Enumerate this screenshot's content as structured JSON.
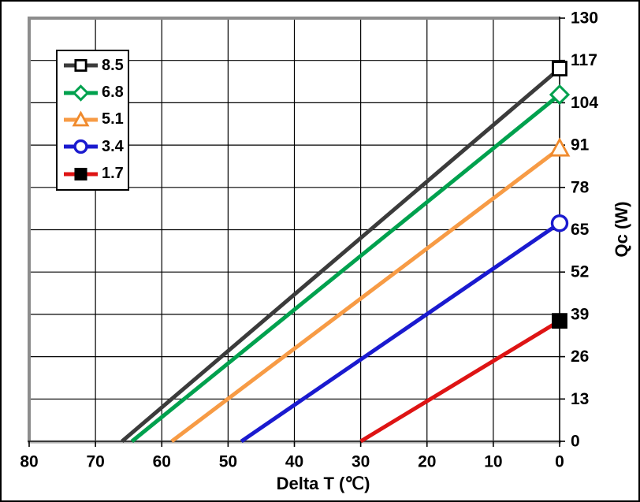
{
  "chart_data": {
    "type": "line",
    "title": "",
    "xlabel": "Delta T (℃)",
    "ylabel": "Qc (W)",
    "grid": true,
    "legend_position": "top-left",
    "x_axis": {
      "min": 0,
      "max": 80,
      "reversed": true,
      "ticks": [
        80,
        70,
        60,
        50,
        40,
        30,
        20,
        10,
        0
      ]
    },
    "y_axis": {
      "min": 0,
      "max": 130,
      "side": "right",
      "ticks": [
        0,
        13,
        26,
        39,
        52,
        65,
        78,
        91,
        104,
        117,
        130
      ]
    },
    "series": [
      {
        "name": "8.5",
        "color": "#3B3B3B",
        "marker": {
          "shape": "square",
          "fill": "#FFFFFF",
          "stroke": "#000000"
        },
        "points": [
          {
            "x": 66,
            "y": 0,
            "marker": false
          },
          {
            "x": 0,
            "y": 114.5,
            "marker": true
          }
        ]
      },
      {
        "name": "6.8",
        "color": "#00A14E",
        "marker": {
          "shape": "diamond",
          "fill": "#FFFFFF",
          "stroke": "#00A14E"
        },
        "points": [
          {
            "x": 64.5,
            "y": 0,
            "marker": false
          },
          {
            "x": 0,
            "y": 106.5,
            "marker": true
          }
        ]
      },
      {
        "name": "5.1",
        "color": "#F79B45",
        "marker": {
          "shape": "triangle",
          "fill": "#FFFBF4",
          "stroke": "#F08A2C"
        },
        "points": [
          {
            "x": 58.5,
            "y": 0,
            "marker": false
          },
          {
            "x": 0,
            "y": 90,
            "marker": true
          }
        ]
      },
      {
        "name": "3.4",
        "color": "#1A1ACF",
        "marker": {
          "shape": "circle",
          "fill": "#FFFFFF",
          "stroke": "#1A1ACF"
        },
        "points": [
          {
            "x": 48,
            "y": 0,
            "marker": false
          },
          {
            "x": 0,
            "y": 67,
            "marker": true
          }
        ]
      },
      {
        "name": "1.7",
        "color": "#DE1414",
        "marker": {
          "shape": "square",
          "fill": "#000000",
          "stroke": "#000000"
        },
        "points": [
          {
            "x": 30,
            "y": 0,
            "marker": false
          },
          {
            "x": 0,
            "y": 37,
            "marker": true
          }
        ]
      }
    ],
    "colors": {
      "grid": "#000000",
      "plot_border": "#8C8C8C",
      "axis": "#000000",
      "background": "#FFFFFF"
    }
  }
}
